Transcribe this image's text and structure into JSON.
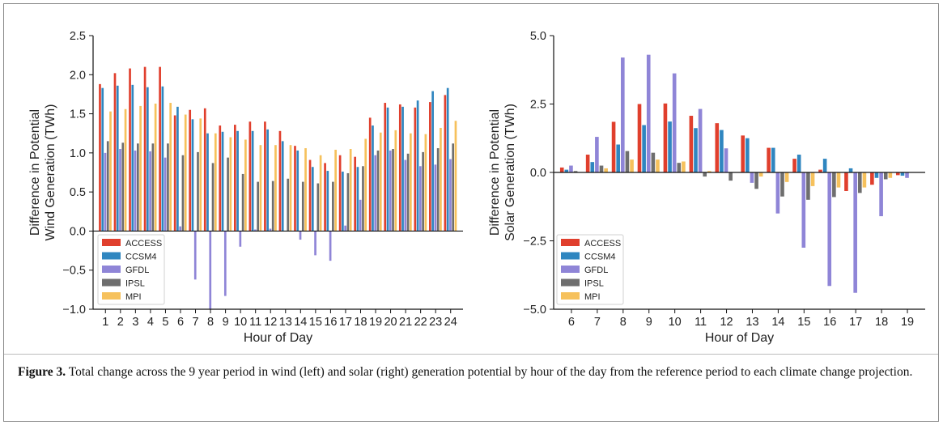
{
  "chart_data": [
    {
      "type": "bar",
      "panel": "left",
      "ylabel_lines": [
        "Difference in Potential",
        "Wind Generation (TWh)"
      ],
      "xlabel": "Hour of Day",
      "ylim": [
        -1.0,
        2.5
      ],
      "yticks": [
        -1.0,
        -0.5,
        0.0,
        0.5,
        1.0,
        1.5,
        2.0,
        2.5
      ],
      "ytick_labels": [
        "−1.0",
        "−0.5",
        "0.0",
        "0.5",
        "1.0",
        "1.5",
        "2.0",
        "2.5"
      ],
      "categories": [
        "1",
        "2",
        "3",
        "4",
        "5",
        "6",
        "7",
        "8",
        "9",
        "10",
        "11",
        "12",
        "13",
        "14",
        "15",
        "16",
        "17",
        "18",
        "19",
        "20",
        "21",
        "22",
        "23",
        "24"
      ],
      "legend_position": "lower-left",
      "series": [
        {
          "name": "ACCESS",
          "color": "#e03f2d",
          "values": [
            1.88,
            2.02,
            2.08,
            2.1,
            2.1,
            1.48,
            1.55,
            1.57,
            1.35,
            1.36,
            1.4,
            1.4,
            1.28,
            1.09,
            0.91,
            0.87,
            0.97,
            0.95,
            1.45,
            1.64,
            1.62,
            1.58,
            1.65,
            1.74
          ]
        },
        {
          "name": "CCSM4",
          "color": "#2f86c0",
          "values": [
            1.83,
            1.86,
            1.87,
            1.84,
            1.85,
            1.59,
            1.43,
            1.25,
            1.27,
            1.28,
            1.28,
            1.3,
            1.15,
            1.03,
            0.82,
            0.77,
            0.76,
            0.82,
            1.35,
            1.58,
            1.59,
            1.67,
            1.79,
            1.83
          ]
        },
        {
          "name": "GFDL",
          "color": "#8f85d7",
          "values": [
            1.0,
            1.05,
            1.03,
            1.02,
            0.94,
            0.06,
            -0.62,
            -1.0,
            -0.83,
            -0.2,
            0.02,
            0.03,
            0.0,
            -0.11,
            -0.31,
            -0.38,
            0.07,
            0.4,
            0.97,
            1.03,
            0.91,
            0.83,
            0.85,
            0.92
          ]
        },
        {
          "name": "IPSL",
          "color": "#6e6e6e",
          "values": [
            1.15,
            1.13,
            1.12,
            1.12,
            1.12,
            0.97,
            1.01,
            0.87,
            0.94,
            0.73,
            0.63,
            0.64,
            0.67,
            0.63,
            0.61,
            0.63,
            0.74,
            0.83,
            1.03,
            1.05,
            0.99,
            1.01,
            1.06,
            1.12
          ]
        },
        {
          "name": "MPI",
          "color": "#f6c15c",
          "values": [
            1.53,
            1.56,
            1.6,
            1.63,
            1.64,
            1.49,
            1.44,
            1.25,
            1.2,
            1.17,
            1.1,
            1.1,
            1.1,
            1.06,
            0.97,
            1.04,
            1.05,
            1.18,
            1.26,
            1.29,
            1.25,
            1.24,
            1.32,
            1.41
          ]
        }
      ]
    },
    {
      "type": "bar",
      "panel": "right",
      "ylabel_lines": [
        "Difference in Potential",
        "Solar Generation (TWh)"
      ],
      "xlabel": "Hour of Day",
      "ylim": [
        -5.0,
        5.0
      ],
      "yticks": [
        -5.0,
        -2.5,
        0.0,
        2.5,
        5.0
      ],
      "ytick_labels": [
        "−5.0",
        "−2.5",
        "0.0",
        "2.5",
        "5.0"
      ],
      "categories": [
        "6",
        "7",
        "8",
        "9",
        "10",
        "11",
        "12",
        "13",
        "14",
        "15",
        "16",
        "17",
        "18",
        "19"
      ],
      "legend_position": "lower-left",
      "series": [
        {
          "name": "ACCESS",
          "color": "#e03f2d",
          "values": [
            0.18,
            0.65,
            1.85,
            2.5,
            2.52,
            2.07,
            1.8,
            1.35,
            0.9,
            0.5,
            0.1,
            -0.68,
            -0.45,
            -0.1
          ]
        },
        {
          "name": "CCSM4",
          "color": "#2f86c0",
          "values": [
            0.1,
            0.38,
            1.02,
            1.73,
            1.86,
            1.62,
            1.55,
            1.25,
            0.9,
            0.65,
            0.5,
            0.15,
            -0.2,
            -0.12
          ]
        },
        {
          "name": "GFDL",
          "color": "#8f85d7",
          "values": [
            0.25,
            1.3,
            4.2,
            4.3,
            3.62,
            2.32,
            0.88,
            -0.38,
            -1.5,
            -2.75,
            -4.15,
            -4.4,
            -1.6,
            -0.2
          ]
        },
        {
          "name": "IPSL",
          "color": "#6e6e6e",
          "values": [
            0.05,
            0.25,
            0.78,
            0.72,
            0.35,
            -0.15,
            -0.3,
            -0.6,
            -0.88,
            -1.0,
            -0.9,
            -0.75,
            -0.25,
            0.0
          ]
        },
        {
          "name": "MPI",
          "color": "#f6c15c",
          "values": [
            0.0,
            0.15,
            0.47,
            0.47,
            0.4,
            0.05,
            0.0,
            -0.15,
            -0.35,
            -0.5,
            -0.55,
            -0.55,
            -0.2,
            0.0
          ]
        }
      ]
    }
  ],
  "caption": {
    "lead": "Figure 3.",
    "text": " Total change across the 9 year period in wind (left) and solar (right) generation potential by hour of the day from the reference period to each climate change projection."
  }
}
